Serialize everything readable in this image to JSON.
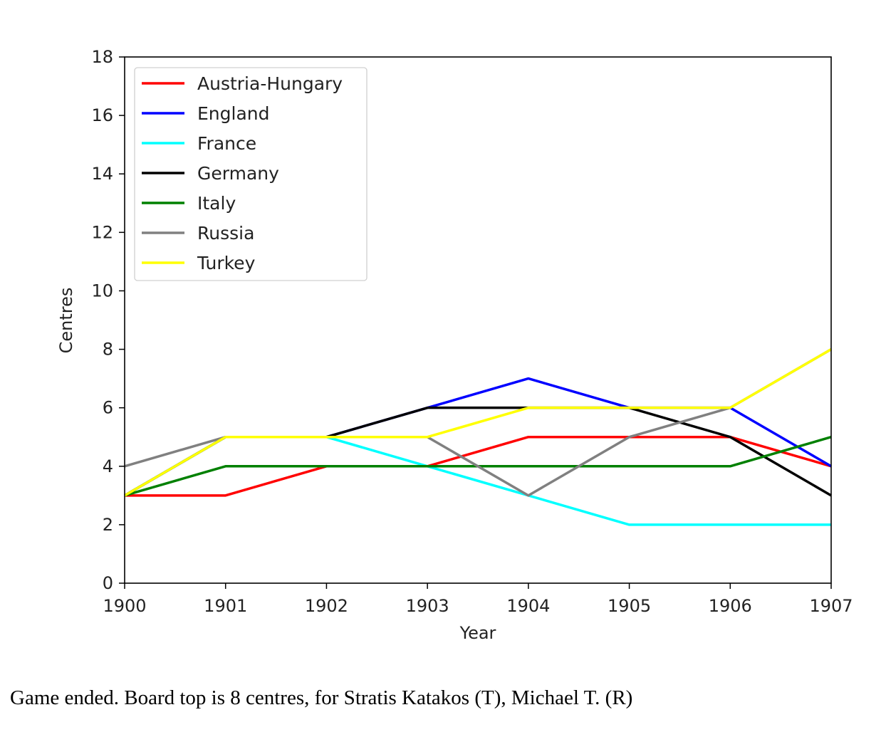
{
  "chart_data": {
    "type": "line",
    "title": "",
    "xlabel": "Year",
    "ylabel": "Centres",
    "x": [
      1900,
      1901,
      1902,
      1903,
      1904,
      1905,
      1906,
      1907
    ],
    "xlim": [
      1900,
      1907
    ],
    "ylim": [
      0,
      18
    ],
    "xticks": [
      "1900",
      "1901",
      "1902",
      "1903",
      "1904",
      "1905",
      "1906",
      "1907"
    ],
    "yticks": [
      "0",
      "2",
      "4",
      "6",
      "8",
      "10",
      "12",
      "14",
      "16",
      "18"
    ],
    "grid": false,
    "legend_position": "top-left",
    "series": [
      {
        "name": "Austria-Hungary",
        "color": "#ff0000",
        "values": [
          3,
          3,
          4,
          4,
          5,
          5,
          5,
          4
        ]
      },
      {
        "name": "England",
        "color": "#0000ff",
        "values": [
          3,
          5,
          5,
          6,
          7,
          6,
          6,
          4
        ]
      },
      {
        "name": "France",
        "color": "#00ffff",
        "values": [
          3,
          5,
          5,
          4,
          3,
          2,
          2,
          2
        ]
      },
      {
        "name": "Germany",
        "color": "#000000",
        "values": [
          3,
          5,
          5,
          6,
          6,
          6,
          5,
          3
        ]
      },
      {
        "name": "Italy",
        "color": "#008000",
        "values": [
          3,
          4,
          4,
          4,
          4,
          4,
          4,
          5
        ]
      },
      {
        "name": "Russia",
        "color": "#808080",
        "values": [
          4,
          5,
          5,
          5,
          3,
          5,
          6,
          8
        ]
      },
      {
        "name": "Turkey",
        "color": "#ffff00",
        "values": [
          3,
          5,
          5,
          5,
          6,
          6,
          6,
          8
        ]
      }
    ]
  },
  "caption": "Game ended. Board top is 8 centres, for Stratis Katakos (T), Michael T. (R)"
}
